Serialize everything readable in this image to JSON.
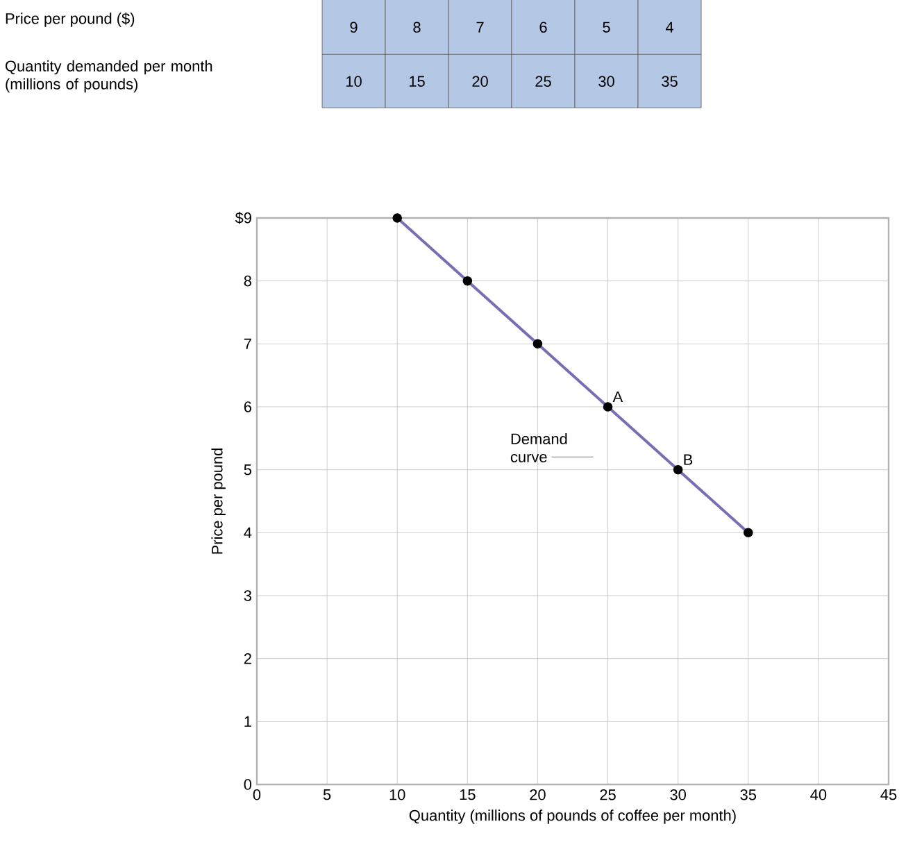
{
  "chart_data": {
    "type": "line",
    "xlabel": "Quantity (millions of pounds of coffee per month)",
    "ylabel": "Price per pound",
    "x": [
      10,
      15,
      20,
      25,
      30,
      35
    ],
    "values": [
      9,
      8,
      7,
      6,
      5,
      4
    ],
    "color": "#7a6db3",
    "marker": "circle",
    "line_style": "solid",
    "grid": true,
    "xlim": [
      0,
      45
    ],
    "xticks": [
      0,
      5,
      10,
      15,
      20,
      25,
      30,
      35,
      40,
      45
    ],
    "ylim": [
      0,
      9
    ],
    "yticks": [
      0,
      1,
      2,
      3,
      4,
      5,
      6,
      7,
      8,
      {
        "value": 9,
        "label": "$9"
      }
    ],
    "annotations": [
      "Price per pound ($)",
      "Quantity demanded per month (millions of pounds)",
      "Demand curve",
      {
        "text": "A",
        "x": 25,
        "y": 6
      },
      {
        "text": "B",
        "x": 30,
        "y": 5
      },
      "9",
      "8",
      "7",
      "6",
      "5",
      "4",
      "10",
      "15",
      "20",
      "25",
      "30",
      "35"
    ]
  }
}
